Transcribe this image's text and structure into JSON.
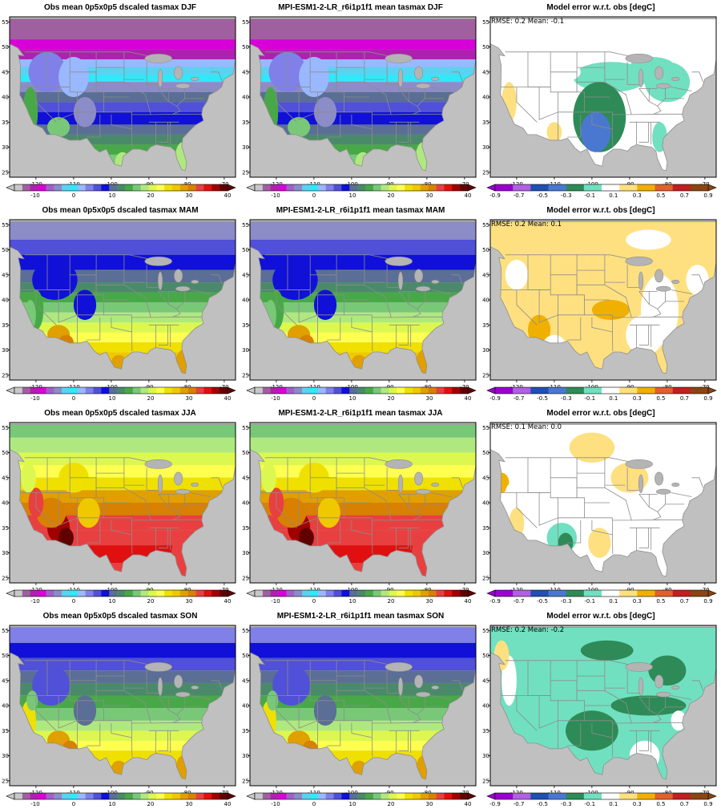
{
  "title_obs_prefix": "Obs mean 0p5x0p5 dscaled tasmax",
  "title_model_prefix": "MPI-ESM1-2-LR_r6i1p1f1 mean tasmax",
  "title_error": "Model error w.r.t. obs [degC]",
  "seasons": [
    {
      "name": "DJF",
      "title_obs": "Obs mean 0p5x0p5 dscaled tasmax DJF",
      "title_model": "MPI-ESM1-2-LR_r6i1p1f1 mean tasmax DJF",
      "title_error": "Model error w.r.t. obs [degC]",
      "stats": "RMSE: 0.2  Mean: -0.1"
    },
    {
      "name": "MAM",
      "title_obs": "Obs mean 0p5x0p5 dscaled tasmax MAM",
      "title_model": "MPI-ESM1-2-LR_r6i1p1f1 mean tasmax MAM",
      "title_error": "Model error w.r.t. obs [degC]",
      "stats": "RMSE: 0.2  Mean: 0.1"
    },
    {
      "name": "JJA",
      "title_obs": "Obs mean 0p5x0p5 dscaled tasmax JJA",
      "title_model": "MPI-ESM1-2-LR_r6i1p1f1 mean tasmax JJA",
      "title_error": "Model error w.r.t. obs [degC]",
      "stats": "RMSE: 0.1  Mean: 0.0"
    },
    {
      "name": "SON",
      "title_obs": "Obs mean 0p5x0p5 dscaled tasmax SON",
      "title_model": "MPI-ESM1-2-LR_r6i1p1f1 mean tasmax SON",
      "title_error": "Model error w.r.t. obs [degC]",
      "stats": "RMSE: 0.2  Mean: -0.2"
    }
  ],
  "lon_ticks": [
    "-120",
    "-110",
    "-100",
    "-90",
    "-80",
    "-70"
  ],
  "lat_ticks": [
    "55",
    "50",
    "45",
    "40",
    "35",
    "30",
    "25"
  ],
  "temp_colorbar": {
    "labels": [
      "-10",
      "0",
      "10",
      "20",
      "30",
      "40"
    ],
    "colors": [
      "#c8c8c8",
      "#a060a0",
      "#b020b0",
      "#d800d8",
      "#a060c8",
      "#8c8cc8",
      "#5ad2f0",
      "#30e8f8",
      "#9ab8ff",
      "#8080e8",
      "#5050d8",
      "#1010d8",
      "#5a6e96",
      "#4a8a6a",
      "#48a848",
      "#78c878",
      "#b0e880",
      "#dcf850",
      "#ffff50",
      "#f0e000",
      "#f0c800",
      "#e0a000",
      "#d88000",
      "#e84040",
      "#e01010",
      "#a00000",
      "#600000"
    ]
  },
  "error_colorbar": {
    "labels": [
      "-0.9",
      "-0.7",
      "-0.5",
      "-0.3",
      "-0.1",
      "0.1",
      "0.3",
      "0.5",
      "0.7",
      "0.9"
    ],
    "colors": [
      "#9a00d0",
      "#b060e0",
      "#2050b0",
      "#4a78d0",
      "#2e8b57",
      "#70e0c0",
      "#ffffff",
      "#ffe080",
      "#f0b000",
      "#e06030",
      "#c02020",
      "#8b4513"
    ]
  }
}
